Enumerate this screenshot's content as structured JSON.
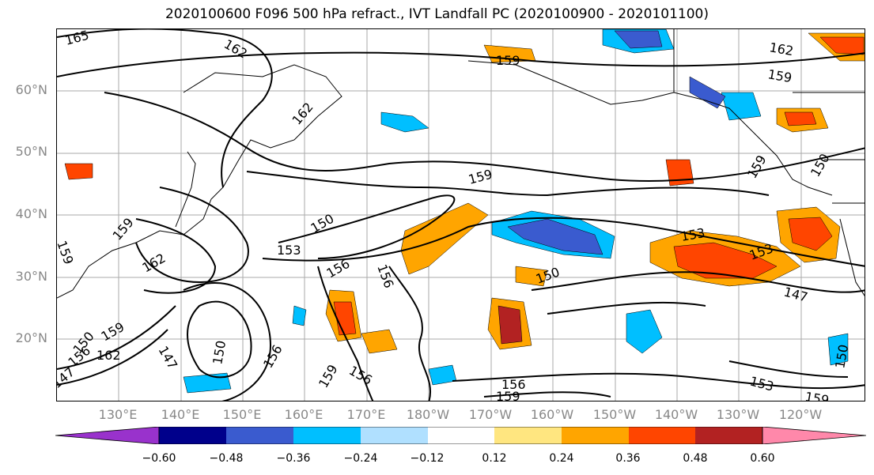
{
  "title": "2020100600 F096 500 hPa refract., IVT Landfall PC (2020100900 - 2020101100)",
  "lat_labels": [
    "60°N",
    "50°N",
    "40°N",
    "30°N",
    "20°N"
  ],
  "lon_labels": [
    "130°E",
    "140°E",
    "150°E",
    "160°E",
    "170°E",
    "180°W",
    "170°W",
    "160°W",
    "150°W",
    "140°W",
    "130°W",
    "120°W"
  ],
  "colorbar": {
    "ticks": [
      "−0.60",
      "−0.48",
      "−0.36",
      "−0.24",
      "−0.12",
      "0.12",
      "0.24",
      "0.36",
      "0.48",
      "0.60"
    ],
    "colors": [
      "#9932cc",
      "#00008b",
      "#3a5bcf",
      "#00bfff",
      "#b0e0ff",
      "#ffffff",
      "#ffe680",
      "#ffa500",
      "#ff4500",
      "#b22222",
      "#ff88aa"
    ]
  },
  "contour_labels": [
    "165",
    "162",
    "162",
    "159",
    "159",
    "162",
    "159",
    "159",
    "153",
    "150",
    "153",
    "159",
    "162",
    "153",
    "159",
    "156",
    "150",
    "153",
    "156",
    "150",
    "147",
    "150",
    "159",
    "156",
    "156",
    "156",
    "159",
    "147",
    "153",
    "159",
    "150",
    "162",
    "150",
    "159",
    "156",
    "147"
  ],
  "colors": {
    "grid": "#aaaaaa",
    "coast": "#000000",
    "contour": "#000000"
  }
}
